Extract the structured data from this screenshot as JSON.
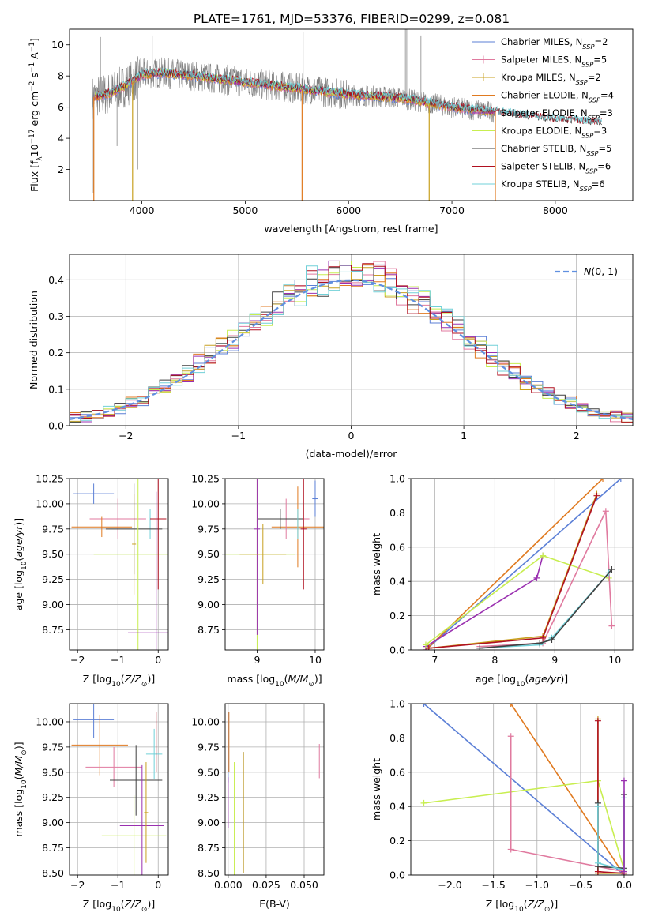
{
  "figure_title": "PLATE=1761, MJD=53376, FIBERID=0299, z=0.081",
  "colors": {
    "Chabrier MILES": "#5b7fd6",
    "Salpeter MILES": "#e07a9f",
    "Kroupa MILES": "#c8a020",
    "Chabrier ELODIE": "#e07a20",
    "Salpeter ELODIE": "#9a30b0",
    "Kroupa ELODIE": "#c8ee50",
    "Chabrier STELIB": "#404040",
    "Salpeter STELIB": "#b01020",
    "Kroupa STELIB": "#70d0d8",
    "data": "#808080",
    "grid": "#b0b0b0",
    "normal": "#6090e0"
  },
  "chart_data": [
    {
      "id": "spectrum",
      "type": "line",
      "title": "PLATE=1761, MJD=53376, FIBERID=0299, z=0.081",
      "xlabel": "wavelength [Angstrom, rest frame]",
      "ylabel": "Flux [f_λ10^-17 erg cm^-2 s^-1 A^-1]",
      "xlim": [
        3300,
        8750
      ],
      "ylim": [
        0,
        11
      ],
      "xticks": [
        "4000",
        "5000",
        "6000",
        "7000",
        "8000"
      ],
      "yticks": [
        "2",
        "4",
        "6",
        "8",
        "10"
      ],
      "legend_position": "upper-right",
      "legend": [
        "Chabrier MILES, N_SSP=2",
        "Salpeter MILES, N_SSP=5",
        "Kroupa MILES, N_SSP=2",
        "Chabrier ELODIE, N_SSP=4",
        "Salpeter ELODIE, N_SSP=3",
        "Kroupa ELODIE, N_SSP=3",
        "Chabrier STELIB, N_SSP=5",
        "Salpeter STELIB, N_SSP=6",
        "Kroupa STELIB, N_SSP=6"
      ],
      "continuum": [
        [
          3500,
          6.6
        ],
        [
          3700,
          6.9
        ],
        [
          3900,
          7.6
        ],
        [
          4000,
          8.1
        ],
        [
          4200,
          8.2
        ],
        [
          4500,
          8.0
        ],
        [
          5000,
          7.6
        ],
        [
          5500,
          7.2
        ],
        [
          6000,
          6.8
        ],
        [
          6500,
          6.6
        ],
        [
          7000,
          6.0
        ],
        [
          7400,
          5.7
        ],
        [
          8000,
          5.2
        ],
        [
          8450,
          5.0
        ]
      ]
    },
    {
      "id": "residuals",
      "type": "histogram",
      "xlabel": "(data-model)/error",
      "ylabel": "Normed distribution",
      "xlim": [
        -2.5,
        2.5
      ],
      "ylim": [
        0,
        0.47
      ],
      "xticks": [
        "−2",
        "−1",
        "0",
        "1",
        "2"
      ],
      "yticks": [
        "0.0",
        "0.1",
        "0.2",
        "0.3",
        "0.4"
      ],
      "legend_position": "upper-right",
      "legend": [
        "N(0,1)"
      ],
      "bin_width": 0.1
    },
    {
      "id": "age-vs-z",
      "type": "errorbar",
      "xlabel": "Z [log10(Z/Z⊙)]",
      "ylabel": "age [log10(age/yr)]",
      "xlim": [
        -2.2,
        0.25
      ],
      "ylim": [
        8.55,
        10.25
      ],
      "xticks": [
        "−2",
        "−1",
        "0"
      ],
      "yticks": [
        "8.75",
        "9.00",
        "9.25",
        "9.50",
        "9.75",
        "10.00",
        "10.25"
      ],
      "points": [
        {
          "s": "Chabrier MILES",
          "x": -1.6,
          "xerr": 0.5,
          "y": 10.1,
          "yerr": 0.1
        },
        {
          "s": "Salpeter MILES",
          "x": -1.0,
          "xerr": 0.7,
          "y": 9.85,
          "yerr": 0.2
        },
        {
          "s": "Chabrier ELODIE",
          "x": -1.4,
          "xerr": 0.75,
          "y": 9.77,
          "yerr": 0.1
        },
        {
          "s": "Kroupa STELIB",
          "x": -0.2,
          "xerr": 0.35,
          "y": 9.8,
          "yerr": 0.15
        },
        {
          "s": "Chabrier STELIB",
          "x": -0.6,
          "xerr": 0.7,
          "y": 9.75,
          "yerr": 0.45
        },
        {
          "s": "Kroupa ELODIE",
          "x": -0.5,
          "xerr": 1.1,
          "y": 9.5,
          "yerr": 1.0
        },
        {
          "s": "Salpeter STELIB",
          "x": 0.0,
          "xerr": 0.2,
          "y": 9.85,
          "yerr": 0.7
        },
        {
          "s": "Salpeter ELODIE",
          "x": -0.05,
          "xerr": 0.7,
          "y": 8.72,
          "yerr": 1.4
        },
        {
          "s": "Kroupa MILES",
          "x": -0.6,
          "xerr": 0.05,
          "y": 9.6,
          "yerr": 0.5
        }
      ]
    },
    {
      "id": "age-vs-mass",
      "type": "errorbar",
      "xlabel": "mass [log10(M/M⊙)]",
      "ylabel": "",
      "xlim": [
        8.45,
        10.15
      ],
      "ylim": [
        8.55,
        10.25
      ],
      "xticks": [
        "9",
        "10"
      ],
      "yticks": [
        "8.75",
        "9.00",
        "9.25",
        "9.50",
        "9.75",
        "10.00",
        "10.25"
      ],
      "points": [
        {
          "s": "Chabrier MILES",
          "x": 10.0,
          "xerr": 0.05,
          "y": 10.05,
          "yerr": 0.18
        },
        {
          "s": "Chabrier ELODIE",
          "x": 9.7,
          "xerr": 0.45,
          "y": 9.77,
          "yerr": 0.4
        },
        {
          "s": "Salpeter MILES",
          "x": 9.5,
          "xerr": 0.4,
          "y": 9.85,
          "yerr": 0.2
        },
        {
          "s": "Chabrier STELIB",
          "x": 9.4,
          "xerr": 0.4,
          "y": 9.85,
          "yerr": 0.1
        },
        {
          "s": "Kroupa ELODIE",
          "x": 9.0,
          "xerr": 0.65,
          "y": 9.5,
          "yerr": 1.1
        },
        {
          "s": "Kroupa STELIB",
          "x": 9.7,
          "xerr": 0.15,
          "y": 9.8,
          "yerr": 0.15
        },
        {
          "s": "Salpeter STELIB",
          "x": 9.8,
          "xerr": 0.05,
          "y": 9.75,
          "yerr": 0.6
        },
        {
          "s": "Salpeter ELODIE",
          "x": 9.0,
          "xerr": 0.05,
          "y": 9.75,
          "yerr": 1.05
        },
        {
          "s": "Kroupa MILES",
          "x": 9.1,
          "xerr": 0.4,
          "y": 9.5,
          "yerr": 0.3
        }
      ]
    },
    {
      "id": "weight-vs-age",
      "type": "line",
      "xlabel": "age [log10(age/yr)]",
      "ylabel": "mass weight",
      "xlim": [
        6.6,
        10.3
      ],
      "ylim": [
        0,
        1.0
      ],
      "xticks": [
        "7",
        "8",
        "9",
        "10"
      ],
      "yticks": [
        "0.0",
        "0.2",
        "0.4",
        "0.6",
        "0.8",
        "1.0"
      ],
      "series": [
        {
          "s": "Chabrier MILES",
          "x": [
            6.85,
            10.1
          ],
          "y": [
            0.0,
            1.0
          ]
        },
        {
          "s": "Chabrier ELODIE",
          "x": [
            6.85,
            9.8
          ],
          "y": [
            0.0,
            1.0
          ]
        },
        {
          "s": "Salpeter ELODIE",
          "x": [
            6.85,
            8.7,
            8.8
          ],
          "y": [
            0.02,
            0.42,
            0.55
          ]
        },
        {
          "s": "Kroupa ELODIE",
          "x": [
            6.85,
            8.8,
            9.9
          ],
          "y": [
            0.03,
            0.55,
            0.42
          ]
        },
        {
          "s": "Salpeter MILES",
          "x": [
            7.75,
            8.8,
            9.85,
            9.95
          ],
          "y": [
            0.02,
            0.04,
            0.81,
            0.14
          ]
        },
        {
          "s": "Kroupa STELIB",
          "x": [
            7.75,
            8.75,
            8.95,
            9.9
          ],
          "y": [
            0.01,
            0.03,
            0.07,
            0.45
          ]
        },
        {
          "s": "Chabrier STELIB",
          "x": [
            7.75,
            8.75,
            8.95,
            9.95
          ],
          "y": [
            0.01,
            0.04,
            0.06,
            0.47
          ]
        },
        {
          "s": "Kroupa MILES",
          "x": [
            6.9,
            8.8,
            9.7
          ],
          "y": [
            0.01,
            0.08,
            0.91
          ]
        },
        {
          "s": "Salpeter STELIB",
          "x": [
            6.9,
            8.8,
            9.7
          ],
          "y": [
            0.01,
            0.07,
            0.9
          ]
        }
      ]
    },
    {
      "id": "mass-vs-z",
      "type": "errorbar",
      "xlabel": "Z [log10(Z/Z⊙)]",
      "ylabel": "mass [log10(M/M⊙)]",
      "xlim": [
        -2.2,
        0.25
      ],
      "ylim": [
        8.48,
        10.18
      ],
      "xticks": [
        "−2",
        "−1",
        "0"
      ],
      "yticks": [
        "8.50",
        "8.75",
        "9.00",
        "9.25",
        "9.50",
        "9.75",
        "10.00"
      ],
      "points": [
        {
          "s": "Chabrier MILES",
          "x": -1.6,
          "xerr": 0.5,
          "y": 10.02,
          "yerr": 0.18
        },
        {
          "s": "Chabrier ELODIE",
          "x": -1.45,
          "xerr": 0.7,
          "y": 9.77,
          "yerr": 0.3
        },
        {
          "s": "Salpeter MILES",
          "x": -1.1,
          "xerr": 0.7,
          "y": 9.55,
          "yerr": 0.2
        },
        {
          "s": "Kroupa STELIB",
          "x": -0.1,
          "xerr": 0.2,
          "y": 9.68,
          "yerr": 0.25
        },
        {
          "s": "Chabrier STELIB",
          "x": -0.55,
          "xerr": 0.65,
          "y": 9.42,
          "yerr": 0.35
        },
        {
          "s": "Kroupa ELODIE",
          "x": -0.6,
          "xerr": 0.8,
          "y": 8.87,
          "yerr": 0.4
        },
        {
          "s": "Salpeter STELIB",
          "x": -0.05,
          "xerr": 0.1,
          "y": 9.8,
          "yerr": 0.3
        },
        {
          "s": "Salpeter ELODIE",
          "x": -0.4,
          "xerr": 0.55,
          "y": 8.97,
          "yerr": 0.6
        },
        {
          "s": "Kroupa MILES",
          "x": -0.3,
          "xerr": 0.05,
          "y": 9.1,
          "yerr": 0.5
        }
      ]
    },
    {
      "id": "mass-vs-ebv",
      "type": "errorbar",
      "xlabel": "E(B-V)",
      "ylabel": "",
      "xlim": [
        -0.002,
        0.063
      ],
      "ylim": [
        8.48,
        10.18
      ],
      "xticks": [
        "0.000",
        "0.025",
        "0.050"
      ],
      "yticks": [
        "8.50",
        "8.75",
        "9.00",
        "9.25",
        "9.50",
        "9.75",
        "10.00"
      ],
      "points": [
        {
          "s": "Chabrier MILES",
          "x": 0.0,
          "xerr": 0,
          "y": 9.75,
          "yerr": 0.35
        },
        {
          "s": "Chabrier ELODIE",
          "x": 0.0005,
          "xerr": 0,
          "y": 9.8,
          "yerr": 0.3
        },
        {
          "s": "Salpeter ELODIE",
          "x": 0.0,
          "xerr": 0,
          "y": 9.2,
          "yerr": 0.25
        },
        {
          "s": "Kroupa ELODIE",
          "x": 0.004,
          "xerr": 0,
          "y": 9.0,
          "yerr": 0.6
        },
        {
          "s": "Chabrier STELIB",
          "x": 0.01,
          "xerr": 0,
          "y": 9.1,
          "yerr": 0.6
        },
        {
          "s": "Kroupa MILES",
          "x": 0.01,
          "xerr": 0,
          "y": 9.1,
          "yerr": 0.6
        },
        {
          "s": "Salpeter MILES",
          "x": 0.06,
          "xerr": 0,
          "y": 9.61,
          "yerr": 0.17
        }
      ]
    },
    {
      "id": "weight-vs-z",
      "type": "line",
      "xlabel": "Z [log10(Z/Z⊙)]",
      "ylabel": "mass weight",
      "xlim": [
        -2.45,
        0.1
      ],
      "ylim": [
        0,
        1.0
      ],
      "xticks": [
        "−2.0",
        "−1.5",
        "−1.0",
        "−0.5",
        "0.0"
      ],
      "yticks": [
        "0.0",
        "0.2",
        "0.4",
        "0.6",
        "0.8",
        "1.0"
      ],
      "series": [
        {
          "s": "Chabrier MILES",
          "x": [
            -2.3,
            0.0
          ],
          "y": [
            1.0,
            0.0
          ]
        },
        {
          "s": "Chabrier ELODIE",
          "x": [
            -1.3,
            0.0
          ],
          "y": [
            1.0,
            0.0
          ]
        },
        {
          "s": "Kroupa ELODIE",
          "x": [
            -2.3,
            -0.3,
            0.0
          ],
          "y": [
            0.42,
            0.55,
            0.03
          ]
        },
        {
          "s": "Salpeter MILES",
          "x": [
            -1.3,
            -1.3,
            0.0
          ],
          "y": [
            0.81,
            0.15,
            0.02
          ]
        },
        {
          "s": "Kroupa MILES",
          "x": [
            -0.3,
            -0.3,
            0.0
          ],
          "y": [
            0.91,
            0.01,
            0.01
          ]
        },
        {
          "s": "Salpeter STELIB",
          "x": [
            -0.3,
            -0.3,
            0.0
          ],
          "y": [
            0.9,
            0.02,
            0.01
          ]
        },
        {
          "s": "Chabrier STELIB",
          "x": [
            -0.3,
            -0.3,
            0.0,
            0.0
          ],
          "y": [
            0.42,
            0.05,
            0.04,
            0.47
          ]
        },
        {
          "s": "Kroupa STELIB",
          "x": [
            -0.3,
            -0.3,
            0.0,
            0.0
          ],
          "y": [
            0.4,
            0.07,
            0.03,
            0.45
          ]
        },
        {
          "s": "Salpeter ELODIE",
          "x": [
            0.0,
            0.0
          ],
          "y": [
            0.55,
            0.02
          ]
        }
      ]
    }
  ]
}
